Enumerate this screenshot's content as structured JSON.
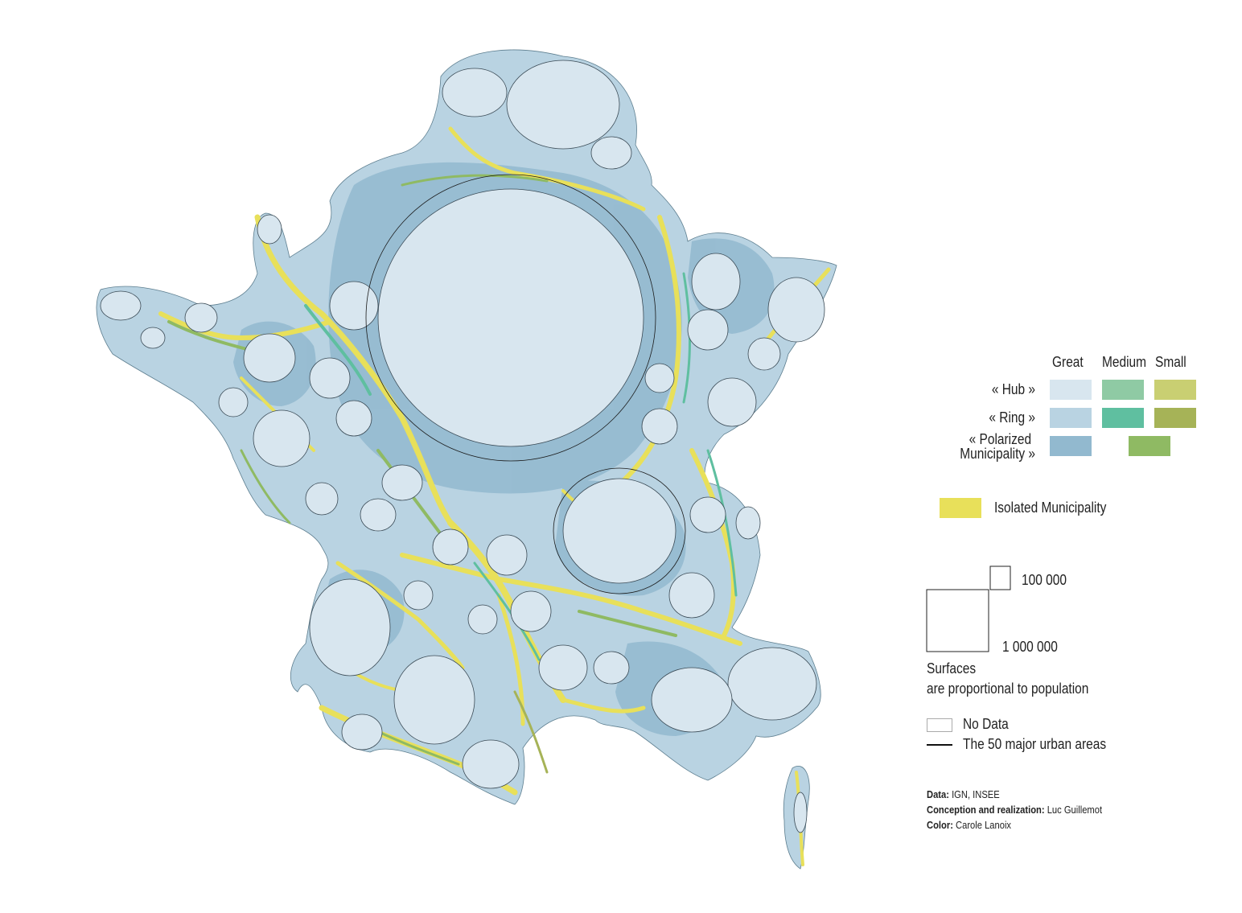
{
  "legend": {
    "columns": [
      "Great",
      "Medium",
      "Small"
    ],
    "rows": [
      {
        "label": "« Hub »",
        "colors": [
          "#d8e6ef",
          "#8fcaa4",
          "#c9cf72"
        ]
      },
      {
        "label": "« Ring »",
        "colors": [
          "#b9d3e2",
          "#5fbfa0",
          "#a6b357"
        ]
      },
      {
        "label_line1": "« Polarized",
        "label_line2": "Municipality »",
        "colors": [
          "#92b9cf",
          "#8fba63"
        ]
      }
    ],
    "isolated": {
      "label": "Isolated Municipality",
      "color": "#e8e05a"
    },
    "size_small": "100 000",
    "size_large": "1 000 000",
    "surfaces_line1": "Surfaces",
    "surfaces_line2": "are proportional to population",
    "no_data": "No Data",
    "major_urban": "The 50 major urban areas"
  },
  "credits": {
    "data_label": "Data:",
    "data_value": " IGN, INSEE",
    "conception_label": "Conception and realization:",
    "conception_value": " Luc Guillemot",
    "color_label": "Color:",
    "color_value": " Carole Lanoix"
  },
  "colors": {
    "great_hub": "#d8e6ef",
    "great_ring": "#b9d3e2",
    "great_polarized": "#92b9cf",
    "medium": "#5fbfa0",
    "small": "#a6b357",
    "isolated": "#e8e05a"
  }
}
